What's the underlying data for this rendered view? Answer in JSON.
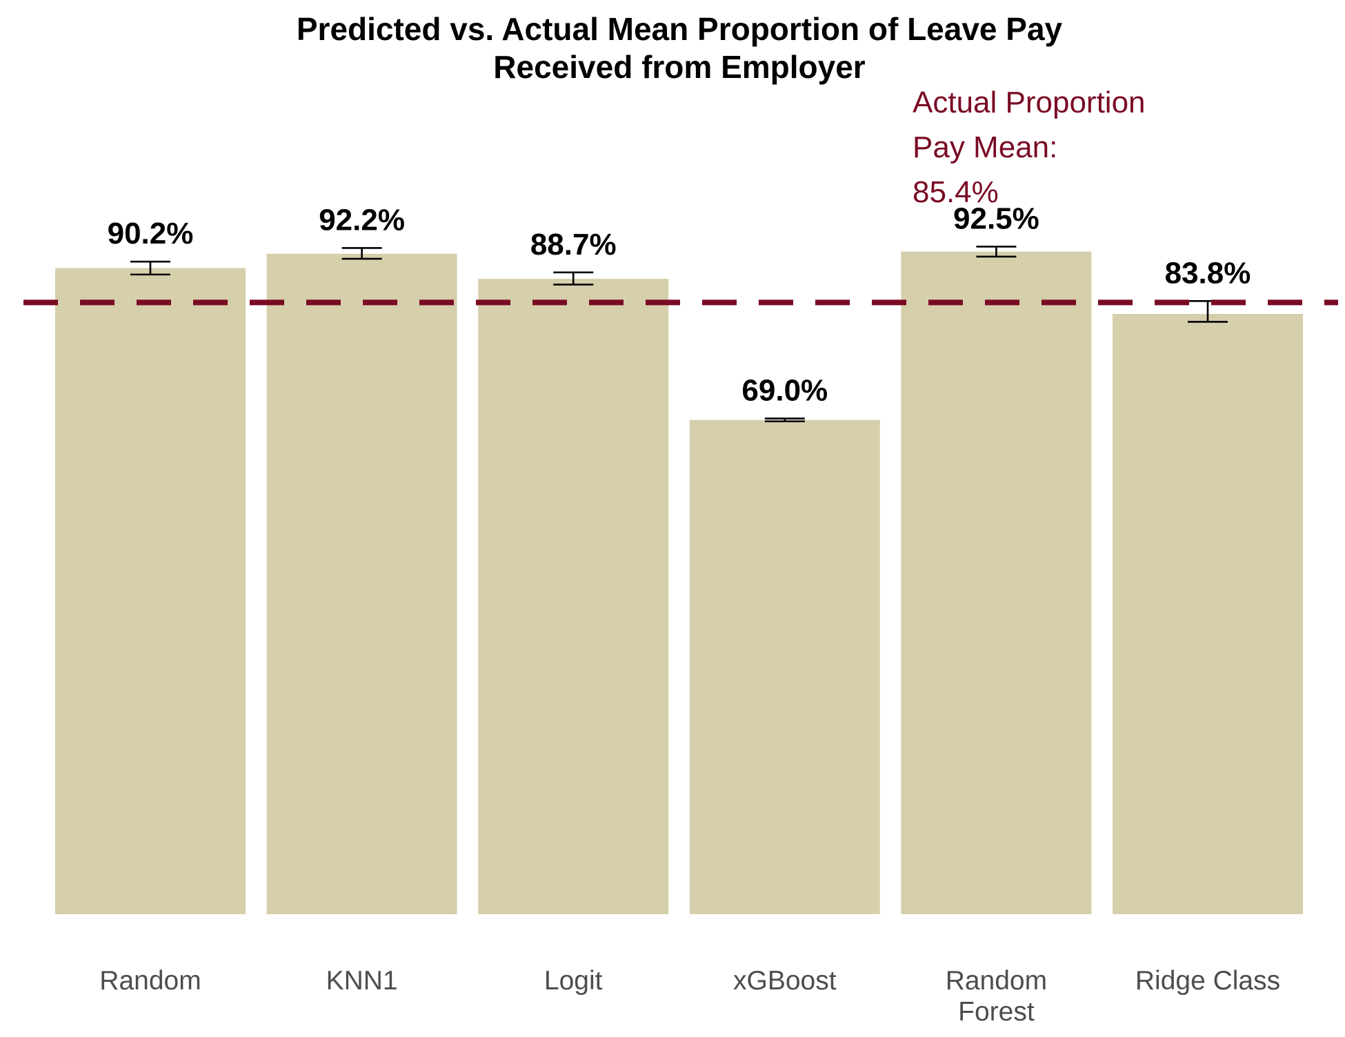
{
  "chart_data": {
    "type": "bar",
    "title_lines": [
      "Predicted vs. Actual Mean Proportion of Leave Pay",
      "Received from Employer"
    ],
    "categories": [
      [
        "Random"
      ],
      [
        "KNN1"
      ],
      [
        "Logit"
      ],
      [
        "xGBoost"
      ],
      [
        "Random",
        "Forest"
      ],
      [
        "Ridge Class"
      ]
    ],
    "values": [
      90.2,
      92.2,
      88.7,
      69.0,
      92.5,
      83.8
    ],
    "value_labels": [
      "90.2%",
      "92.2%",
      "88.7%",
      "69.0%",
      "92.5%",
      "83.8%"
    ],
    "error_bars": [
      {
        "low": 89.3,
        "high": 91.1
      },
      {
        "low": 91.5,
        "high": 93.0
      },
      {
        "low": 87.9,
        "high": 89.6
      },
      {
        "low": 68.8,
        "high": 69.2
      },
      {
        "low": 91.8,
        "high": 93.2
      },
      {
        "low": 82.7,
        "high": 85.6
      }
    ],
    "reference_line": {
      "value": 85.4,
      "label_lines": [
        "Actual Proportion",
        "Pay Mean:",
        "85.4%"
      ]
    },
    "ylim": [
      0,
      100
    ],
    "grid": false,
    "colors": {
      "bar": "#d6cfab",
      "reference": "#7a0a24",
      "error_bar": "#000000"
    }
  }
}
